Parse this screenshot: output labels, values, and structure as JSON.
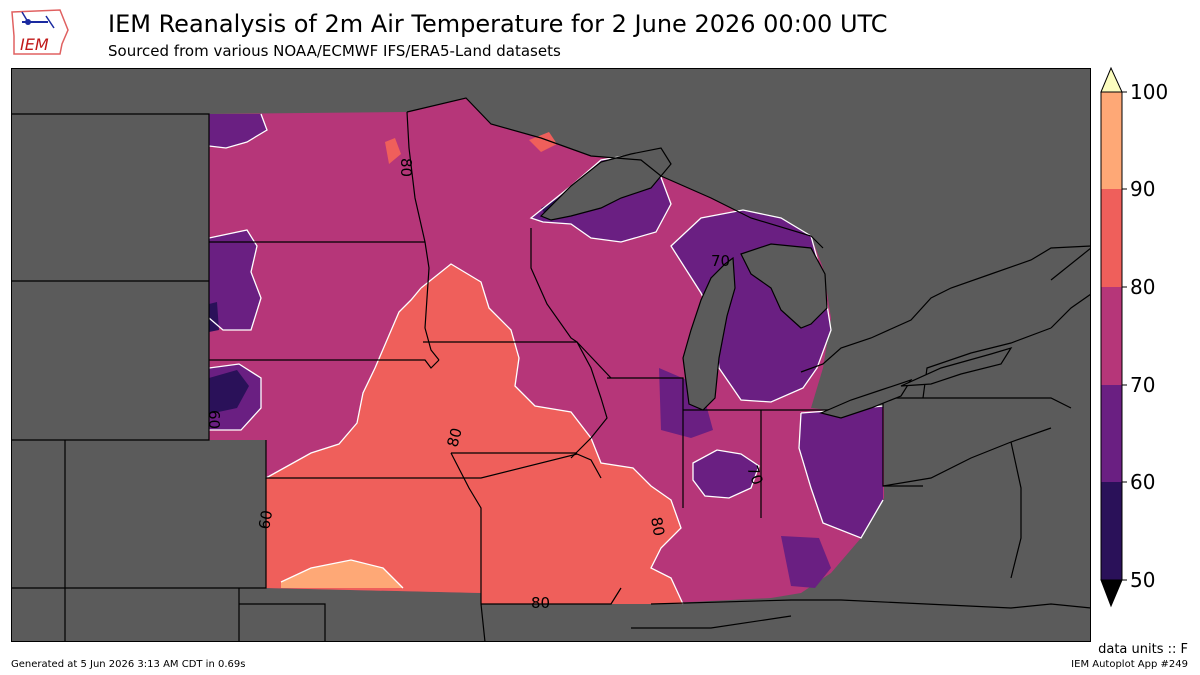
{
  "header": {
    "logo_text": "IEM",
    "title": "IEM Reanalysis of 2m Air Temperature for 2 June 2026 00:00 UTC",
    "subtitle": "Sourced from various NOAA/ECMWF IFS/ERA5-Land datasets"
  },
  "colorbar": {
    "ticks": [
      "50",
      "60",
      "70",
      "80",
      "90",
      "100"
    ],
    "colors": [
      "#2a1159",
      "#6a1f82",
      "#b63679",
      "#ef5f5b",
      "#fea876",
      "#fcfdbf",
      "#000000"
    ],
    "units_label": "data units :: F"
  },
  "map": {
    "background_color": "#5b5b5b",
    "contour_labels": [
      "80",
      "80",
      "80",
      "80",
      "70",
      "70",
      "60",
      "60"
    ]
  },
  "footer": {
    "generated": "Generated at 5 Jun 2026 3:13 AM CDT in 0.69s",
    "app": "IEM Autoplot App #249"
  }
}
